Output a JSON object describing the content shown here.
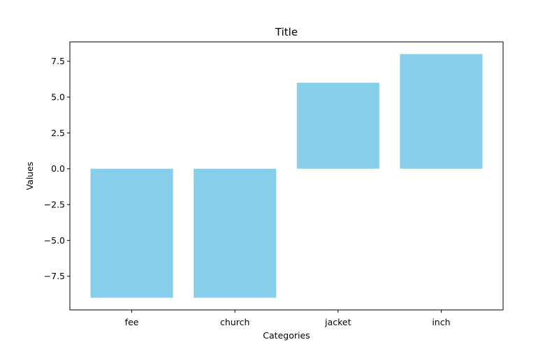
{
  "chart_data": {
    "type": "bar",
    "title": "Title",
    "xlabel": "Categories",
    "ylabel": "Values",
    "categories": [
      "fee",
      "church",
      "jacket",
      "inch"
    ],
    "values": [
      -9,
      -9,
      6,
      8
    ],
    "ylim": [
      -9.85,
      8.85
    ],
    "yticks": [
      -7.5,
      -5.0,
      -2.5,
      0.0,
      2.5,
      5.0,
      7.5
    ],
    "ytick_labels": [
      "−7.5",
      "−5.0",
      "−2.5",
      "0.0",
      "2.5",
      "5.0",
      "7.5"
    ],
    "bar_color": "#87ceeb",
    "grid": false,
    "legend": "none"
  }
}
